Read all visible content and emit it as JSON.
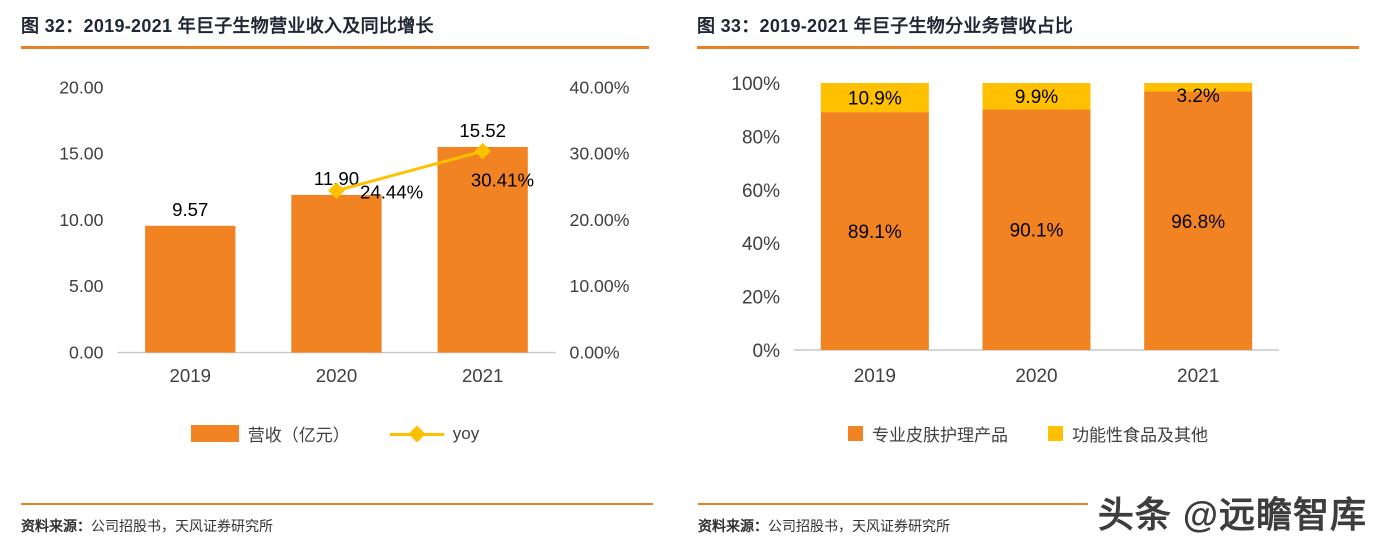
{
  "colors": {
    "orange": "#F28322",
    "yellow": "#FFC000",
    "title_text": "#1F2733",
    "axis_text": "#404040",
    "rule_orange": "#E88024",
    "baseline_gray": "#C9C9C9",
    "label_text": "#000000"
  },
  "watermark": "头条 @远瞻智库",
  "left_panel": {
    "title": "图 32：2019-2021 年巨子生物营业收入及同比增长",
    "legend": {
      "bar_label": "营收（亿元）",
      "line_label": "yoy"
    },
    "source_label": "资料来源：",
    "source_text": "公司招股书，天风证券研究所"
  },
  "right_panel": {
    "title": "图 33：2019-2021 年巨子生物分业务营收占比",
    "legend": {
      "series1_label": "专业皮肤护理产品",
      "series2_label": "功能性食品及其他"
    },
    "source_label": "资料来源：",
    "source_text": "公司招股书，天风证券研究所"
  },
  "chart_data": [
    {
      "type": "bar",
      "subtype": "bar+line-combo",
      "title": "图 32：2019-2021 年巨子生物营业收入及同比增长",
      "categories": [
        "2019",
        "2020",
        "2021"
      ],
      "series": [
        {
          "name": "营收（亿元）",
          "type": "bar",
          "axis": "left",
          "values": [
            9.57,
            11.9,
            15.52
          ],
          "labels": [
            "9.57",
            "11.90",
            "15.52"
          ]
        },
        {
          "name": "yoy",
          "type": "line",
          "axis": "right",
          "values": [
            null,
            24.44,
            30.41
          ],
          "labels": [
            "",
            "24.44%",
            "30.41%"
          ]
        }
      ],
      "left_axis": {
        "min": 0,
        "max": 20,
        "ticks": [
          "0.00",
          "5.00",
          "10.00",
          "15.00",
          "20.00"
        ]
      },
      "right_axis": {
        "min": 0,
        "max": 40,
        "ticks": [
          "0.00%",
          "10.00%",
          "20.00%",
          "30.00%",
          "40.00%"
        ]
      },
      "grid": false,
      "legend_position": "bottom"
    },
    {
      "type": "bar",
      "subtype": "stacked-100",
      "title": "图 33：2019-2021 年巨子生物分业务营收占比",
      "categories": [
        "2019",
        "2020",
        "2021"
      ],
      "series": [
        {
          "name": "专业皮肤护理产品",
          "values": [
            89.1,
            90.1,
            96.8
          ],
          "labels": [
            "89.1%",
            "90.1%",
            "96.8%"
          ]
        },
        {
          "name": "功能性食品及其他",
          "values": [
            10.9,
            9.9,
            3.2
          ],
          "labels": [
            "10.9%",
            "9.9%",
            "3.2%"
          ]
        }
      ],
      "yaxis": {
        "min": 0,
        "max": 100,
        "ticks": [
          "0%",
          "20%",
          "40%",
          "60%",
          "80%",
          "100%"
        ]
      },
      "grid": false,
      "legend_position": "bottom"
    }
  ]
}
